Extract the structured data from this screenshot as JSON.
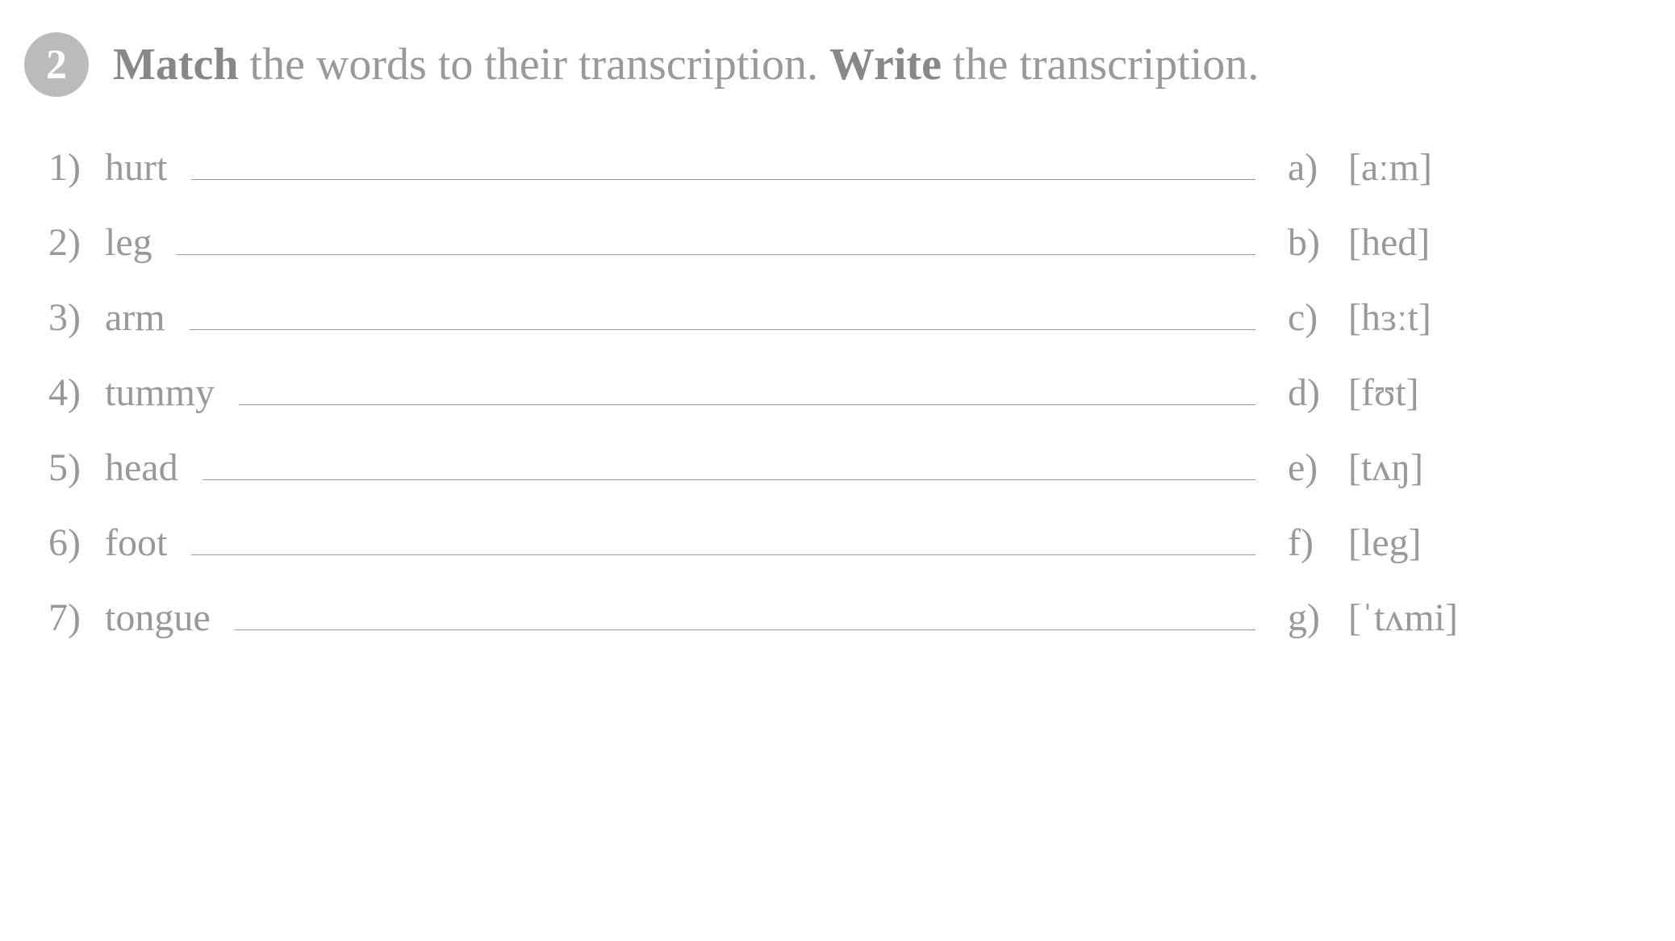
{
  "exercise_number": "2",
  "instruction": {
    "word1": "Match",
    "text1": " the words to their transcription. ",
    "word2": "Write",
    "text2": " the transcription."
  },
  "left_items": [
    {
      "num": "1)",
      "word": "hurt"
    },
    {
      "num": "2)",
      "word": "leg"
    },
    {
      "num": "3)",
      "word": "arm"
    },
    {
      "num": "4)",
      "word": "tummy"
    },
    {
      "num": "5)",
      "word": "head"
    },
    {
      "num": "6)",
      "word": "foot"
    },
    {
      "num": "7)",
      "word": "tongue"
    }
  ],
  "right_items": [
    {
      "letter": "a)",
      "transcription": "[aːm]"
    },
    {
      "letter": "b)",
      "transcription": "[hed]"
    },
    {
      "letter": "c)",
      "transcription": "[hɜːt]"
    },
    {
      "letter": "d)",
      "transcription": "[fʊt]"
    },
    {
      "letter": "e)",
      "transcription": "[tʌŋ]"
    },
    {
      "letter": "f)",
      "transcription": "[leg]"
    },
    {
      "letter": "g)",
      "transcription": "[ˈtʌmi]"
    }
  ],
  "styling": {
    "background_color": "#ffffff",
    "text_color": "#999999",
    "bold_text_color": "#888888",
    "badge_background": "#bbbbbb",
    "badge_text_color": "#ffffff",
    "line_color": "#999999",
    "body_font_size": 48,
    "instruction_font_size": 56,
    "badge_font_size": 52
  }
}
